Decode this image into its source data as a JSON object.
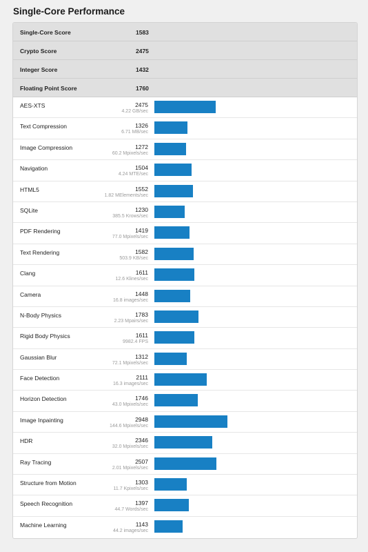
{
  "page": {
    "title": "Single-Core Performance"
  },
  "colors": {
    "bar": "#1880c4",
    "summary_bg": "#e0e0e0"
  },
  "summary": [
    {
      "label": "Single-Core Score",
      "value": "1583"
    },
    {
      "label": "Crypto Score",
      "value": "2475"
    },
    {
      "label": "Integer Score",
      "value": "1432"
    },
    {
      "label": "Floating Point Score",
      "value": "1760"
    }
  ],
  "max_score": 2948,
  "benchmarks": [
    {
      "name": "AES-XTS",
      "score": "2475",
      "unit": "4.22 GB/sec"
    },
    {
      "name": "Text Compression",
      "score": "1326",
      "unit": "6.71 MB/sec"
    },
    {
      "name": "Image Compression",
      "score": "1272",
      "unit": "60.2 Mpixels/sec"
    },
    {
      "name": "Navigation",
      "score": "1504",
      "unit": "4.24 MTE/sec"
    },
    {
      "name": "HTML5",
      "score": "1552",
      "unit": "1.82 MElements/sec"
    },
    {
      "name": "SQLite",
      "score": "1230",
      "unit": "385.5 Krows/sec"
    },
    {
      "name": "PDF Rendering",
      "score": "1419",
      "unit": "77.0 Mpixels/sec"
    },
    {
      "name": "Text Rendering",
      "score": "1582",
      "unit": "503.9 KB/sec"
    },
    {
      "name": "Clang",
      "score": "1611",
      "unit": "12.6 Klines/sec"
    },
    {
      "name": "Camera",
      "score": "1448",
      "unit": "16.8 images/sec"
    },
    {
      "name": "N-Body Physics",
      "score": "1783",
      "unit": "2.23 Mpairs/sec"
    },
    {
      "name": "Rigid Body Physics",
      "score": "1611",
      "unit": "9982.4 FPS"
    },
    {
      "name": "Gaussian Blur",
      "score": "1312",
      "unit": "72.1 Mpixels/sec"
    },
    {
      "name": "Face Detection",
      "score": "2111",
      "unit": "16.3 images/sec"
    },
    {
      "name": "Horizon Detection",
      "score": "1746",
      "unit": "43.0 Mpixels/sec"
    },
    {
      "name": "Image Inpainting",
      "score": "2948",
      "unit": "144.6 Mpixels/sec"
    },
    {
      "name": "HDR",
      "score": "2346",
      "unit": "32.0 Mpixels/sec"
    },
    {
      "name": "Ray Tracing",
      "score": "2507",
      "unit": "2.01 Mpixels/sec"
    },
    {
      "name": "Structure from Motion",
      "score": "1303",
      "unit": "11.7 Kpixels/sec"
    },
    {
      "name": "Speech Recognition",
      "score": "1397",
      "unit": "44.7 Words/sec"
    },
    {
      "name": "Machine Learning",
      "score": "1143",
      "unit": "44.2 images/sec"
    }
  ]
}
